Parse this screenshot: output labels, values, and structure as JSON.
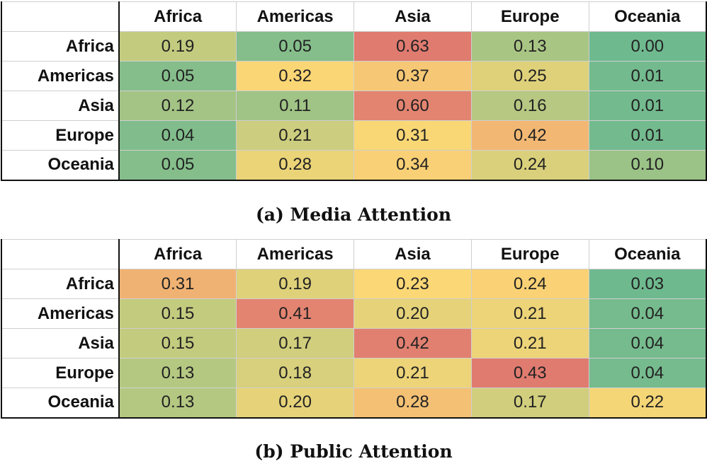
{
  "chart_data": [
    {
      "type": "heatmap",
      "caption": "(a) Media Attention",
      "columns": [
        "Africa",
        "Americas",
        "Asia",
        "Europe",
        "Oceania"
      ],
      "rows": [
        "Africa",
        "Americas",
        "Asia",
        "Europe",
        "Oceania"
      ],
      "values": [
        [
          "0.19",
          "0.05",
          "0.63",
          "0.13",
          "0.00"
        ],
        [
          "0.05",
          "0.32",
          "0.37",
          "0.25",
          "0.01"
        ],
        [
          "0.12",
          "0.11",
          "0.60",
          "0.16",
          "0.01"
        ],
        [
          "0.04",
          "0.21",
          "0.31",
          "0.42",
          "0.01"
        ],
        [
          "0.05",
          "0.28",
          "0.34",
          "0.24",
          "0.10"
        ]
      ]
    },
    {
      "type": "heatmap",
      "caption": "(b) Public Attention",
      "columns": [
        "Africa",
        "Americas",
        "Asia",
        "Europe",
        "Oceania"
      ],
      "rows": [
        "Africa",
        "Americas",
        "Asia",
        "Europe",
        "Oceania"
      ],
      "values": [
        [
          "0.31",
          "0.19",
          "0.23",
          "0.24",
          "0.03"
        ],
        [
          "0.15",
          "0.41",
          "0.20",
          "0.21",
          "0.04"
        ],
        [
          "0.15",
          "0.17",
          "0.42",
          "0.21",
          "0.04"
        ],
        [
          "0.13",
          "0.18",
          "0.21",
          "0.43",
          "0.04"
        ],
        [
          "0.13",
          "0.20",
          "0.28",
          "0.17",
          "0.22"
        ]
      ]
    }
  ],
  "color_scale": {
    "min_color": "#6fb98f",
    "mid_color": "#fbd775",
    "max_color": "#e07b70"
  }
}
